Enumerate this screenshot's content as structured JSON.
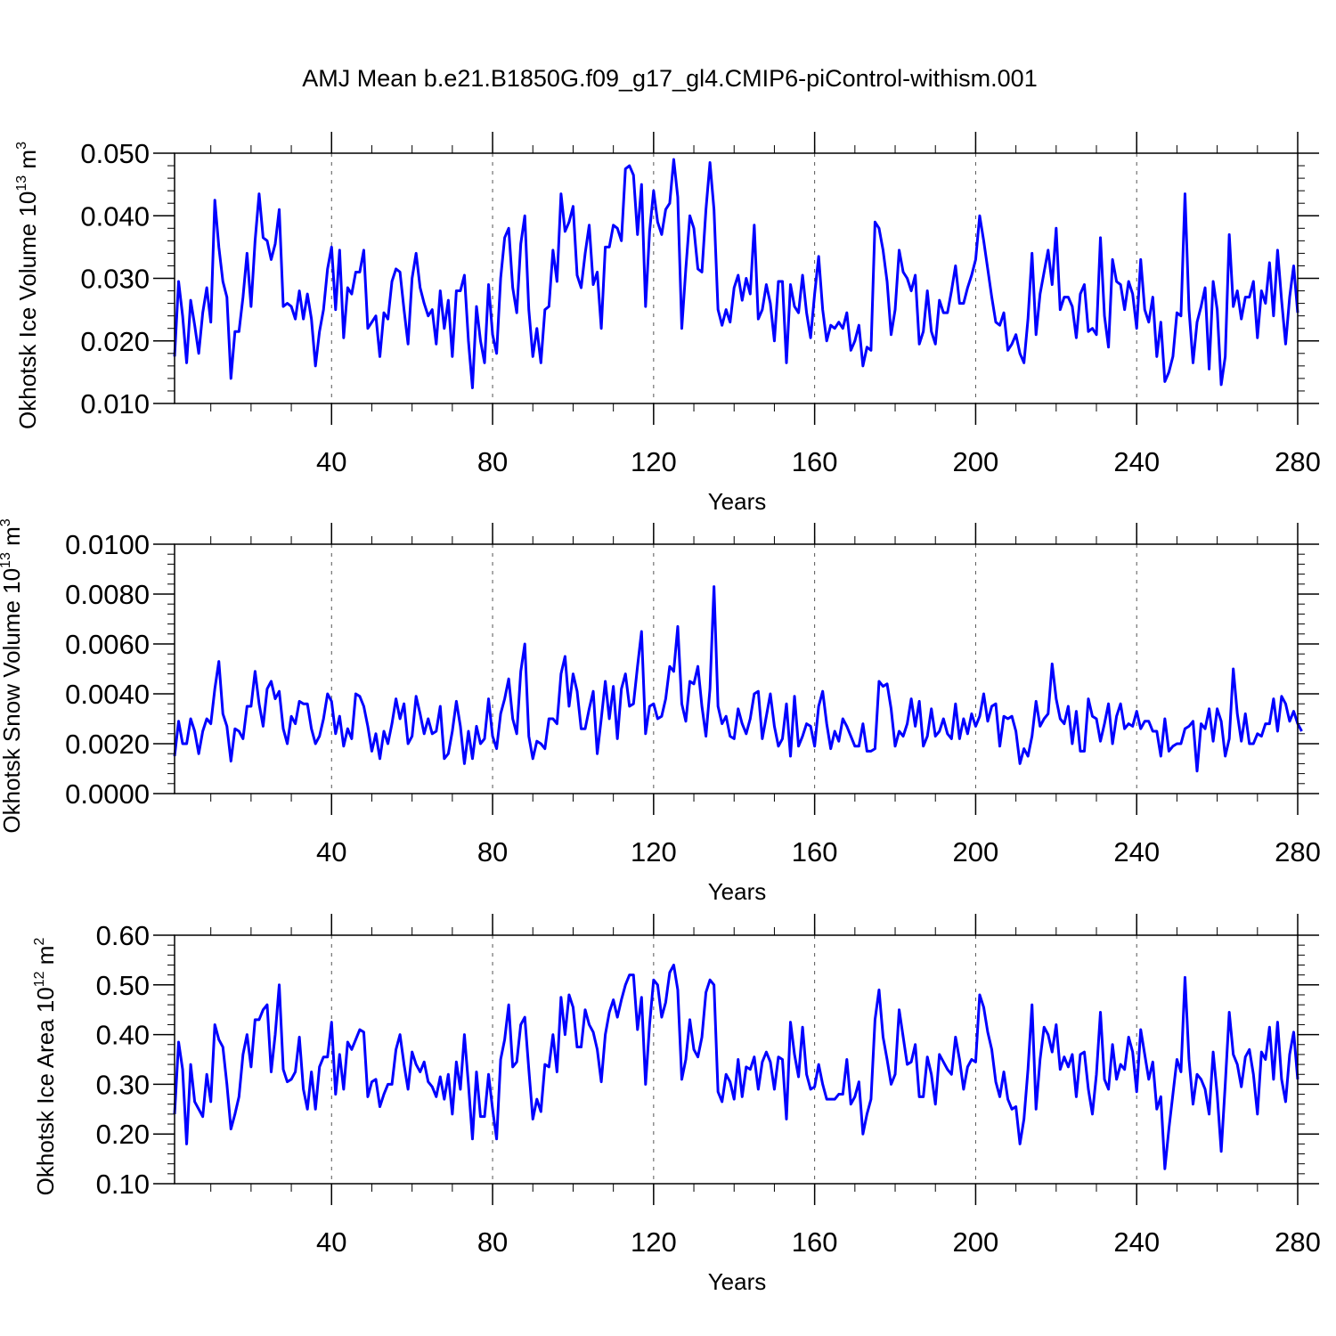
{
  "title": "AMJ Mean b.e21.B1850G.f09_g17_gl4.CMIP6-piControl-withism.001",
  "colors": {
    "series": "#0000ff",
    "axis": "#000000",
    "grid": "#555555"
  },
  "chart_data": [
    {
      "type": "line",
      "ylabel_main": "Okhotsk Ice Volume 10",
      "ylabel_exp": "13",
      "ylabel_unit": " m",
      "ylabel_unit_exp": "3",
      "xlabel": "Years",
      "xlim": [
        1,
        280
      ],
      "ylim": [
        0.01,
        0.05
      ],
      "yticks": [
        0.01,
        0.02,
        0.03,
        0.04,
        0.05
      ],
      "yticklabels": [
        "0.010",
        "0.020",
        "0.030",
        "0.040",
        "0.050"
      ],
      "xticks": [
        40,
        80,
        120,
        160,
        200,
        240,
        280
      ],
      "xticklabels": [
        "40",
        "80",
        "120",
        "160",
        "200",
        "240",
        "280"
      ],
      "grid_x": [
        40,
        80,
        120,
        160,
        200,
        240
      ],
      "x_start": 1,
      "values": [
        0.0175,
        0.0295,
        0.024,
        0.0165,
        0.0265,
        0.0225,
        0.018,
        0.0245,
        0.0285,
        0.023,
        0.0425,
        0.035,
        0.0295,
        0.027,
        0.014,
        0.0215,
        0.0215,
        0.027,
        0.034,
        0.0255,
        0.036,
        0.0435,
        0.0365,
        0.036,
        0.033,
        0.0355,
        0.041,
        0.0255,
        0.026,
        0.0255,
        0.0235,
        0.028,
        0.0235,
        0.0275,
        0.0235,
        0.016,
        0.0215,
        0.025,
        0.0315,
        0.035,
        0.025,
        0.0345,
        0.0205,
        0.0285,
        0.0275,
        0.031,
        0.031,
        0.0345,
        0.022,
        0.023,
        0.024,
        0.0175,
        0.0245,
        0.0235,
        0.0295,
        0.0315,
        0.031,
        0.025,
        0.0195,
        0.03,
        0.034,
        0.0285,
        0.026,
        0.024,
        0.025,
        0.0195,
        0.028,
        0.022,
        0.0265,
        0.0175,
        0.028,
        0.028,
        0.0305,
        0.02,
        0.0125,
        0.0255,
        0.02,
        0.0165,
        0.029,
        0.021,
        0.018,
        0.03,
        0.0365,
        0.038,
        0.0285,
        0.0245,
        0.0355,
        0.04,
        0.025,
        0.0175,
        0.022,
        0.0165,
        0.025,
        0.0255,
        0.0345,
        0.0295,
        0.0435,
        0.0375,
        0.039,
        0.0415,
        0.0305,
        0.0285,
        0.034,
        0.0385,
        0.029,
        0.031,
        0.022,
        0.035,
        0.035,
        0.0385,
        0.038,
        0.036,
        0.0475,
        0.048,
        0.0465,
        0.037,
        0.045,
        0.0255,
        0.0375,
        0.044,
        0.039,
        0.037,
        0.041,
        0.042,
        0.049,
        0.043,
        0.022,
        0.0315,
        0.04,
        0.038,
        0.0315,
        0.031,
        0.041,
        0.0485,
        0.041,
        0.025,
        0.0225,
        0.025,
        0.023,
        0.0285,
        0.0305,
        0.0265,
        0.03,
        0.0275,
        0.0385,
        0.0235,
        0.025,
        0.029,
        0.026,
        0.02,
        0.0295,
        0.0295,
        0.0165,
        0.029,
        0.0255,
        0.0245,
        0.0305,
        0.0245,
        0.0205,
        0.0275,
        0.0335,
        0.025,
        0.02,
        0.0225,
        0.022,
        0.023,
        0.022,
        0.0245,
        0.0185,
        0.02,
        0.0225,
        0.016,
        0.019,
        0.0185,
        0.039,
        0.038,
        0.0345,
        0.0295,
        0.021,
        0.025,
        0.0345,
        0.031,
        0.03,
        0.028,
        0.0305,
        0.0195,
        0.0215,
        0.028,
        0.0215,
        0.0195,
        0.0265,
        0.0245,
        0.0245,
        0.028,
        0.032,
        0.026,
        0.026,
        0.0285,
        0.0305,
        0.033,
        0.04,
        0.036,
        0.0315,
        0.027,
        0.023,
        0.0225,
        0.0245,
        0.0185,
        0.0195,
        0.021,
        0.018,
        0.0165,
        0.0235,
        0.034,
        0.021,
        0.0275,
        0.031,
        0.0345,
        0.029,
        0.038,
        0.025,
        0.027,
        0.027,
        0.0255,
        0.0205,
        0.0275,
        0.029,
        0.0215,
        0.022,
        0.021,
        0.0365,
        0.024,
        0.019,
        0.033,
        0.0295,
        0.029,
        0.025,
        0.0295,
        0.0275,
        0.022,
        0.033,
        0.025,
        0.023,
        0.027,
        0.0175,
        0.023,
        0.0135,
        0.015,
        0.0175,
        0.0245,
        0.024,
        0.0435,
        0.025,
        0.0165,
        0.023,
        0.0255,
        0.0285,
        0.0155,
        0.0295,
        0.025,
        0.013,
        0.0175,
        0.037,
        0.0255,
        0.028,
        0.0235,
        0.027,
        0.027,
        0.0295,
        0.0205,
        0.028,
        0.026,
        0.0325,
        0.024,
        0.0345,
        0.0265,
        0.0195,
        0.027,
        0.032,
        0.0245
      ]
    },
    {
      "type": "line",
      "ylabel_main": "Okhotsk Snow Volume 10",
      "ylabel_exp": "13",
      "ylabel_unit": " m",
      "ylabel_unit_exp": "3",
      "xlabel": "Years",
      "xlim": [
        1,
        280
      ],
      "ylim": [
        0.0,
        0.01
      ],
      "yticks": [
        0.0,
        0.002,
        0.004,
        0.006,
        0.008,
        0.01
      ],
      "yticklabels": [
        "0.0000",
        "0.0020",
        "0.0040",
        "0.0060",
        "0.0080",
        "0.0100"
      ],
      "xticks": [
        40,
        80,
        120,
        160,
        200,
        240,
        280
      ],
      "xticklabels": [
        "40",
        "80",
        "120",
        "160",
        "200",
        "240",
        "280"
      ],
      "grid_x": [
        40,
        80,
        120,
        160,
        200,
        240
      ],
      "x_start": 1,
      "values": [
        0.0015,
        0.0029,
        0.002,
        0.002,
        0.003,
        0.0025,
        0.0016,
        0.0025,
        0.003,
        0.0028,
        0.0042,
        0.0053,
        0.0032,
        0.0027,
        0.0013,
        0.0026,
        0.0025,
        0.0022,
        0.0035,
        0.0035,
        0.0049,
        0.0036,
        0.0027,
        0.0042,
        0.0045,
        0.0038,
        0.0041,
        0.0026,
        0.002,
        0.0031,
        0.0028,
        0.0037,
        0.0036,
        0.0036,
        0.0026,
        0.002,
        0.0023,
        0.003,
        0.004,
        0.0037,
        0.0024,
        0.0031,
        0.0019,
        0.0026,
        0.0022,
        0.004,
        0.0039,
        0.0035,
        0.0027,
        0.0017,
        0.0024,
        0.0014,
        0.0025,
        0.002,
        0.0028,
        0.0038,
        0.003,
        0.0036,
        0.002,
        0.0023,
        0.0039,
        0.0032,
        0.0024,
        0.003,
        0.0024,
        0.0025,
        0.0035,
        0.0014,
        0.0016,
        0.0025,
        0.0037,
        0.0027,
        0.0012,
        0.0025,
        0.0014,
        0.0027,
        0.002,
        0.0022,
        0.0038,
        0.0023,
        0.0018,
        0.0032,
        0.0038,
        0.0046,
        0.003,
        0.0024,
        0.0049,
        0.006,
        0.0023,
        0.0014,
        0.0021,
        0.002,
        0.0018,
        0.003,
        0.003,
        0.0028,
        0.0048,
        0.0055,
        0.0035,
        0.0048,
        0.0041,
        0.0026,
        0.0026,
        0.0034,
        0.0041,
        0.0016,
        0.003,
        0.0045,
        0.003,
        0.0043,
        0.0022,
        0.0042,
        0.0048,
        0.0035,
        0.0036,
        0.0051,
        0.0065,
        0.0024,
        0.0035,
        0.0036,
        0.003,
        0.0031,
        0.0038,
        0.0051,
        0.0049,
        0.0067,
        0.0036,
        0.0029,
        0.0045,
        0.0044,
        0.0051,
        0.0035,
        0.0023,
        0.0042,
        0.0083,
        0.0035,
        0.0028,
        0.0031,
        0.0023,
        0.0022,
        0.0034,
        0.0028,
        0.0024,
        0.003,
        0.004,
        0.0041,
        0.0022,
        0.0031,
        0.004,
        0.0027,
        0.0019,
        0.0022,
        0.0036,
        0.0015,
        0.0039,
        0.0019,
        0.0023,
        0.0028,
        0.0027,
        0.0019,
        0.0035,
        0.0041,
        0.0028,
        0.0018,
        0.0025,
        0.0021,
        0.003,
        0.0027,
        0.0023,
        0.0019,
        0.0019,
        0.0028,
        0.0017,
        0.0017,
        0.0018,
        0.0045,
        0.0043,
        0.0044,
        0.0034,
        0.0019,
        0.0025,
        0.0023,
        0.0028,
        0.0038,
        0.0027,
        0.0037,
        0.0019,
        0.0023,
        0.0034,
        0.0023,
        0.0025,
        0.003,
        0.0024,
        0.0022,
        0.0036,
        0.0022,
        0.003,
        0.0024,
        0.0032,
        0.0027,
        0.0031,
        0.004,
        0.0029,
        0.0035,
        0.0036,
        0.0019,
        0.0031,
        0.003,
        0.0031,
        0.0025,
        0.0012,
        0.0018,
        0.0015,
        0.0023,
        0.0037,
        0.0027,
        0.003,
        0.0032,
        0.0052,
        0.0038,
        0.003,
        0.0028,
        0.0035,
        0.002,
        0.0033,
        0.0017,
        0.0017,
        0.0038,
        0.0031,
        0.003,
        0.0021,
        0.0028,
        0.0036,
        0.002,
        0.0031,
        0.0036,
        0.0026,
        0.0028,
        0.0027,
        0.0033,
        0.0026,
        0.0029,
        0.0029,
        0.0025,
        0.0025,
        0.0015,
        0.003,
        0.0017,
        0.0019,
        0.002,
        0.002,
        0.0026,
        0.0027,
        0.0029,
        0.0009,
        0.0028,
        0.0026,
        0.0034,
        0.0021,
        0.0034,
        0.0029,
        0.0015,
        0.0022,
        0.005,
        0.0032,
        0.0021,
        0.0032,
        0.002,
        0.002,
        0.0024,
        0.0023,
        0.0028,
        0.0028,
        0.0038,
        0.0025,
        0.0039,
        0.0036,
        0.0029,
        0.0033,
        0.0028,
        0.0025
      ]
    },
    {
      "type": "line",
      "ylabel_main": "Okhotsk Ice Area 10",
      "ylabel_exp": "12",
      "ylabel_unit": " m",
      "ylabel_unit_exp": "2",
      "xlabel": "Years",
      "xlim": [
        1,
        280
      ],
      "ylim": [
        0.1,
        0.6
      ],
      "yticks": [
        0.1,
        0.2,
        0.3,
        0.4,
        0.5,
        0.6
      ],
      "yticklabels": [
        "0.10",
        "0.20",
        "0.30",
        "0.40",
        "0.50",
        "0.60"
      ],
      "xticks": [
        40,
        80,
        120,
        160,
        200,
        240,
        280
      ],
      "xticklabels": [
        "40",
        "80",
        "120",
        "160",
        "200",
        "240",
        "280"
      ],
      "grid_x": [
        40,
        80,
        120,
        160,
        200,
        240
      ],
      "x_start": 1,
      "values": [
        0.24,
        0.385,
        0.33,
        0.18,
        0.34,
        0.265,
        0.25,
        0.235,
        0.32,
        0.265,
        0.42,
        0.39,
        0.375,
        0.3,
        0.21,
        0.24,
        0.275,
        0.36,
        0.4,
        0.335,
        0.43,
        0.43,
        0.45,
        0.46,
        0.325,
        0.4,
        0.5,
        0.33,
        0.305,
        0.31,
        0.325,
        0.395,
        0.29,
        0.25,
        0.325,
        0.25,
        0.335,
        0.355,
        0.355,
        0.425,
        0.28,
        0.36,
        0.29,
        0.385,
        0.37,
        0.39,
        0.41,
        0.405,
        0.275,
        0.305,
        0.31,
        0.255,
        0.28,
        0.3,
        0.3,
        0.37,
        0.4,
        0.34,
        0.29,
        0.365,
        0.34,
        0.325,
        0.345,
        0.305,
        0.295,
        0.275,
        0.315,
        0.27,
        0.32,
        0.24,
        0.345,
        0.29,
        0.4,
        0.3,
        0.19,
        0.325,
        0.235,
        0.235,
        0.32,
        0.25,
        0.19,
        0.35,
        0.39,
        0.46,
        0.335,
        0.345,
        0.42,
        0.435,
        0.33,
        0.23,
        0.27,
        0.245,
        0.34,
        0.335,
        0.4,
        0.325,
        0.475,
        0.4,
        0.48,
        0.455,
        0.375,
        0.375,
        0.45,
        0.42,
        0.405,
        0.37,
        0.305,
        0.4,
        0.445,
        0.47,
        0.435,
        0.47,
        0.5,
        0.52,
        0.52,
        0.41,
        0.475,
        0.3,
        0.42,
        0.51,
        0.5,
        0.435,
        0.465,
        0.525,
        0.54,
        0.49,
        0.31,
        0.35,
        0.43,
        0.37,
        0.355,
        0.395,
        0.485,
        0.51,
        0.5,
        0.285,
        0.265,
        0.32,
        0.305,
        0.27,
        0.35,
        0.275,
        0.335,
        0.33,
        0.355,
        0.29,
        0.345,
        0.365,
        0.345,
        0.29,
        0.355,
        0.35,
        0.23,
        0.425,
        0.36,
        0.315,
        0.415,
        0.32,
        0.29,
        0.295,
        0.34,
        0.3,
        0.27,
        0.27,
        0.27,
        0.28,
        0.28,
        0.35,
        0.26,
        0.275,
        0.305,
        0.2,
        0.24,
        0.27,
        0.43,
        0.49,
        0.395,
        0.35,
        0.3,
        0.32,
        0.45,
        0.395,
        0.34,
        0.345,
        0.38,
        0.275,
        0.275,
        0.355,
        0.32,
        0.26,
        0.36,
        0.345,
        0.33,
        0.32,
        0.395,
        0.35,
        0.29,
        0.335,
        0.35,
        0.345,
        0.48,
        0.455,
        0.405,
        0.37,
        0.305,
        0.275,
        0.325,
        0.27,
        0.25,
        0.255,
        0.18,
        0.23,
        0.33,
        0.46,
        0.25,
        0.35,
        0.415,
        0.4,
        0.365,
        0.42,
        0.33,
        0.355,
        0.335,
        0.36,
        0.275,
        0.36,
        0.365,
        0.29,
        0.24,
        0.32,
        0.445,
        0.31,
        0.29,
        0.38,
        0.31,
        0.34,
        0.33,
        0.395,
        0.365,
        0.285,
        0.41,
        0.36,
        0.31,
        0.345,
        0.25,
        0.275,
        0.13,
        0.21,
        0.28,
        0.35,
        0.325,
        0.515,
        0.35,
        0.26,
        0.32,
        0.31,
        0.29,
        0.24,
        0.365,
        0.28,
        0.165,
        0.3,
        0.445,
        0.36,
        0.34,
        0.295,
        0.355,
        0.37,
        0.32,
        0.24,
        0.365,
        0.35,
        0.415,
        0.31,
        0.425,
        0.31,
        0.265,
        0.36,
        0.405,
        0.31
      ]
    }
  ]
}
